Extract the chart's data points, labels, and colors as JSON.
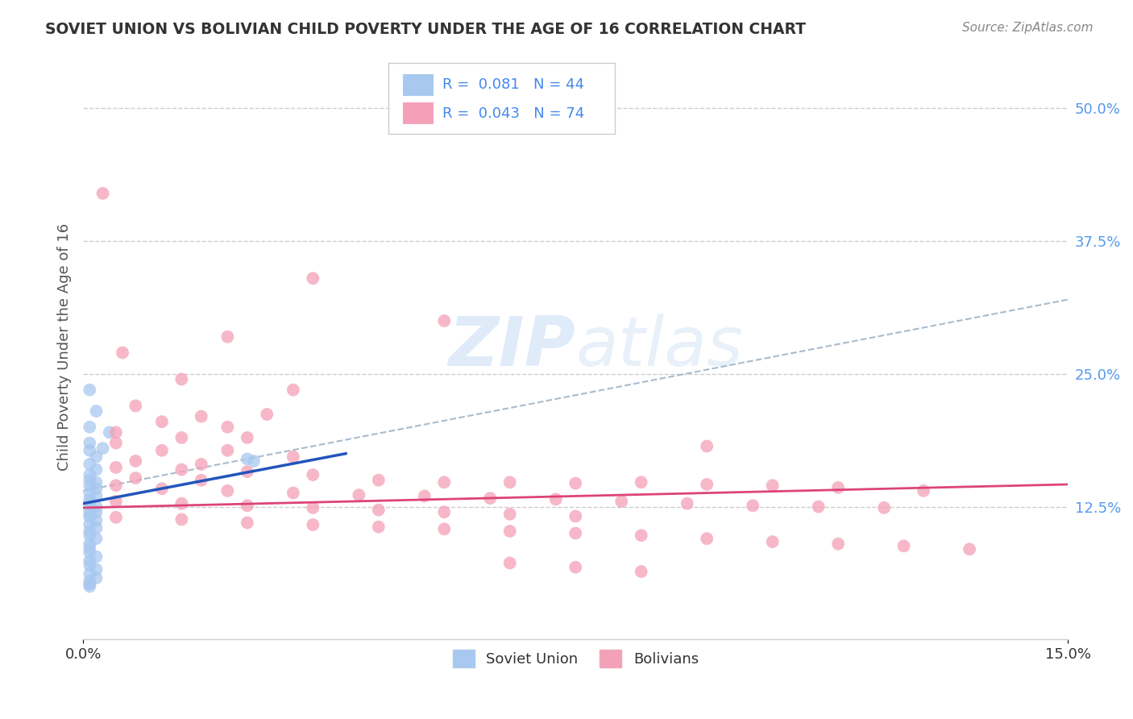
{
  "title": "SOVIET UNION VS BOLIVIAN CHILD POVERTY UNDER THE AGE OF 16 CORRELATION CHART",
  "source": "Source: ZipAtlas.com",
  "ylabel": "Child Poverty Under the Age of 16",
  "xlim": [
    0.0,
    0.15
  ],
  "ylim": [
    0.0,
    0.55
  ],
  "yticks": [
    0.125,
    0.25,
    0.375,
    0.5
  ],
  "xticks": [
    0.0,
    0.15
  ],
  "soviet_color": "#a8c8f0",
  "bolivian_color": "#f4a0b8",
  "soviet_line_color": "#2255bb",
  "bolivian_line_color": "#dd4477",
  "trend_line_color": "#aabbcc",
  "watermark_color": "#ccdff5",
  "soviet_line": [
    [
      0.0,
      0.128
    ],
    [
      0.04,
      0.175
    ]
  ],
  "bolivian_line": [
    [
      0.0,
      0.124
    ],
    [
      0.15,
      0.146
    ]
  ],
  "trend_line": [
    [
      0.0,
      0.14
    ],
    [
      0.15,
      0.32
    ]
  ],
  "soviet_scatter": [
    [
      0.001,
      0.235
    ],
    [
      0.002,
      0.215
    ],
    [
      0.001,
      0.2
    ],
    [
      0.001,
      0.185
    ],
    [
      0.001,
      0.178
    ],
    [
      0.002,
      0.172
    ],
    [
      0.001,
      0.165
    ],
    [
      0.002,
      0.16
    ],
    [
      0.001,
      0.155
    ],
    [
      0.001,
      0.15
    ],
    [
      0.002,
      0.148
    ],
    [
      0.001,
      0.145
    ],
    [
      0.002,
      0.142
    ],
    [
      0.001,
      0.138
    ],
    [
      0.002,
      0.135
    ],
    [
      0.001,
      0.132
    ],
    [
      0.001,
      0.128
    ],
    [
      0.002,
      0.125
    ],
    [
      0.001,
      0.122
    ],
    [
      0.002,
      0.12
    ],
    [
      0.001,
      0.118
    ],
    [
      0.001,
      0.115
    ],
    [
      0.002,
      0.112
    ],
    [
      0.001,
      0.108
    ],
    [
      0.002,
      0.105
    ],
    [
      0.001,
      0.102
    ],
    [
      0.001,
      0.098
    ],
    [
      0.002,
      0.095
    ],
    [
      0.001,
      0.09
    ],
    [
      0.001,
      0.086
    ],
    [
      0.001,
      0.082
    ],
    [
      0.002,
      0.078
    ],
    [
      0.001,
      0.074
    ],
    [
      0.001,
      0.07
    ],
    [
      0.002,
      0.066
    ],
    [
      0.001,
      0.062
    ],
    [
      0.002,
      0.058
    ],
    [
      0.001,
      0.055
    ],
    [
      0.001,
      0.052
    ],
    [
      0.001,
      0.05
    ],
    [
      0.025,
      0.17
    ],
    [
      0.026,
      0.168
    ],
    [
      0.004,
      0.195
    ],
    [
      0.003,
      0.18
    ]
  ],
  "bolivian_scatter": [
    [
      0.003,
      0.42
    ],
    [
      0.035,
      0.34
    ],
    [
      0.055,
      0.3
    ],
    [
      0.022,
      0.285
    ],
    [
      0.006,
      0.27
    ],
    [
      0.015,
      0.245
    ],
    [
      0.032,
      0.235
    ],
    [
      0.008,
      0.22
    ],
    [
      0.018,
      0.21
    ],
    [
      0.028,
      0.212
    ],
    [
      0.012,
      0.205
    ],
    [
      0.022,
      0.2
    ],
    [
      0.005,
      0.195
    ],
    [
      0.015,
      0.19
    ],
    [
      0.025,
      0.19
    ],
    [
      0.005,
      0.185
    ],
    [
      0.095,
      0.182
    ],
    [
      0.012,
      0.178
    ],
    [
      0.022,
      0.178
    ],
    [
      0.032,
      0.172
    ],
    [
      0.008,
      0.168
    ],
    [
      0.018,
      0.165
    ],
    [
      0.005,
      0.162
    ],
    [
      0.015,
      0.16
    ],
    [
      0.025,
      0.158
    ],
    [
      0.035,
      0.155
    ],
    [
      0.008,
      0.152
    ],
    [
      0.018,
      0.15
    ],
    [
      0.045,
      0.15
    ],
    [
      0.055,
      0.148
    ],
    [
      0.065,
      0.148
    ],
    [
      0.075,
      0.147
    ],
    [
      0.085,
      0.148
    ],
    [
      0.095,
      0.146
    ],
    [
      0.105,
      0.145
    ],
    [
      0.115,
      0.143
    ],
    [
      0.005,
      0.145
    ],
    [
      0.012,
      0.142
    ],
    [
      0.022,
      0.14
    ],
    [
      0.032,
      0.138
    ],
    [
      0.042,
      0.136
    ],
    [
      0.052,
      0.135
    ],
    [
      0.062,
      0.133
    ],
    [
      0.072,
      0.132
    ],
    [
      0.082,
      0.13
    ],
    [
      0.092,
      0.128
    ],
    [
      0.102,
      0.126
    ],
    [
      0.112,
      0.125
    ],
    [
      0.122,
      0.124
    ],
    [
      0.005,
      0.13
    ],
    [
      0.015,
      0.128
    ],
    [
      0.025,
      0.126
    ],
    [
      0.035,
      0.124
    ],
    [
      0.045,
      0.122
    ],
    [
      0.055,
      0.12
    ],
    [
      0.065,
      0.118
    ],
    [
      0.075,
      0.116
    ],
    [
      0.005,
      0.115
    ],
    [
      0.015,
      0.113
    ],
    [
      0.025,
      0.11
    ],
    [
      0.035,
      0.108
    ],
    [
      0.045,
      0.106
    ],
    [
      0.055,
      0.104
    ],
    [
      0.065,
      0.102
    ],
    [
      0.075,
      0.1
    ],
    [
      0.085,
      0.098
    ],
    [
      0.095,
      0.095
    ],
    [
      0.105,
      0.092
    ],
    [
      0.115,
      0.09
    ],
    [
      0.125,
      0.088
    ],
    [
      0.135,
      0.085
    ],
    [
      0.065,
      0.072
    ],
    [
      0.075,
      0.068
    ],
    [
      0.085,
      0.064
    ],
    [
      0.128,
      0.14
    ]
  ]
}
